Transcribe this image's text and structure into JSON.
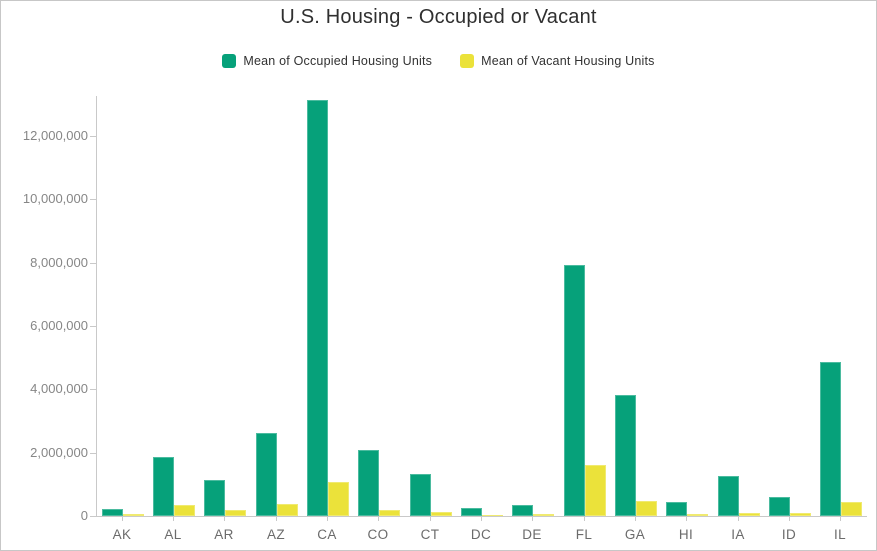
{
  "chart_data": {
    "type": "bar",
    "title": "U.S. Housing - Occupied or Vacant",
    "categories": [
      "AK",
      "AL",
      "AR",
      "AZ",
      "CA",
      "CO",
      "CT",
      "DC",
      "DE",
      "FL",
      "GA",
      "HI",
      "IA",
      "ID",
      "IL"
    ],
    "series": [
      {
        "name": "Mean of Occupied Housing Units",
        "key": "occupied",
        "color": "#06a17a",
        "values": [
          230000,
          1860000,
          1140000,
          2620000,
          13150000,
          2080000,
          1330000,
          250000,
          340000,
          7930000,
          3810000,
          440000,
          1250000,
          610000,
          4860000
        ]
      },
      {
        "name": "Mean of Vacant Housing Units",
        "key": "vacant",
        "color": "#ebe23a",
        "values": [
          70000,
          350000,
          180000,
          380000,
          1080000,
          190000,
          120000,
          30000,
          60000,
          1600000,
          470000,
          60000,
          110000,
          90000,
          440000
        ]
      }
    ],
    "xlabel": "",
    "ylabel": "",
    "y_ticks": [
      0,
      2000000,
      4000000,
      6000000,
      8000000,
      10000000,
      12000000
    ],
    "ylim": [
      0,
      13265000
    ],
    "grid": false,
    "legend_position": "top"
  },
  "style": {
    "axis_color": "#c9c9c9",
    "y_label_color": "#868686",
    "x_label_color": "#6b6b6b",
    "title_color": "#2f2f2f"
  }
}
